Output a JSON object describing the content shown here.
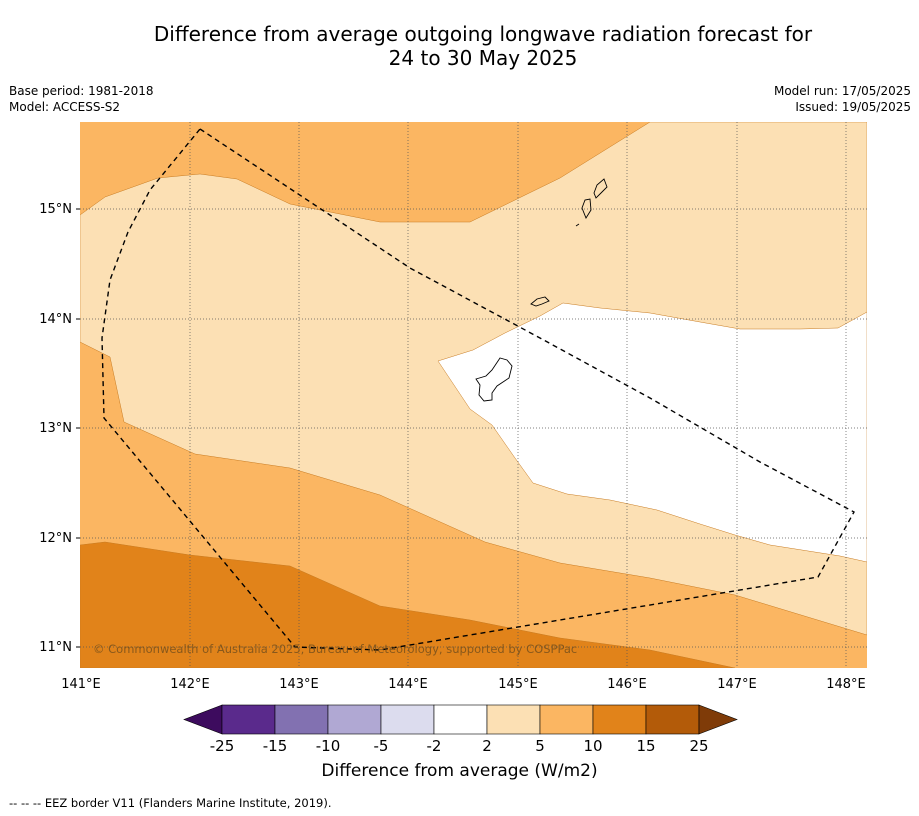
{
  "title": {
    "line1": "Difference from average outgoing longwave radiation forecast for",
    "line2": "24 to 30 May 2025"
  },
  "meta": {
    "base_period": "Base period: 1981-2018",
    "model": "Model: ACCESS-S2",
    "model_run": "Model run: 17/05/2025",
    "issued": "Issued: 19/05/2025"
  },
  "map": {
    "lon_labels": [
      "141°E",
      "142°E",
      "143°E",
      "144°E",
      "145°E",
      "146°E",
      "147°E",
      "148°E"
    ],
    "lat_labels": [
      "15°N",
      "14°N",
      "13°N",
      "12°N",
      "11°N"
    ],
    "copyright": "© Commonwealth of Australia 2025, Bureau of Meteorology, supported by COSPPac",
    "colors": {
      "band_2_5": "#fce0b4",
      "band_5_10": "#fbb662",
      "band_10_15": "#e1831a",
      "band_neutral": "#ffffff"
    }
  },
  "colorbar": {
    "ticks": [
      "-25",
      "-15",
      "-10",
      "-5",
      "-2",
      "2",
      "5",
      "10",
      "15",
      "25"
    ],
    "colors": [
      "#3d0b5e",
      "#5a2a8c",
      "#8271b1",
      "#b0a8d3",
      "#dcdcee",
      "#ffffff",
      "#fce0b4",
      "#fbb662",
      "#e1831a",
      "#b35b09",
      "#7f3b08"
    ],
    "title": "Difference from average (W/m2)"
  },
  "footnote": "--  --  -- EEZ border V11 (Flanders Marine Institute, 2019)."
}
